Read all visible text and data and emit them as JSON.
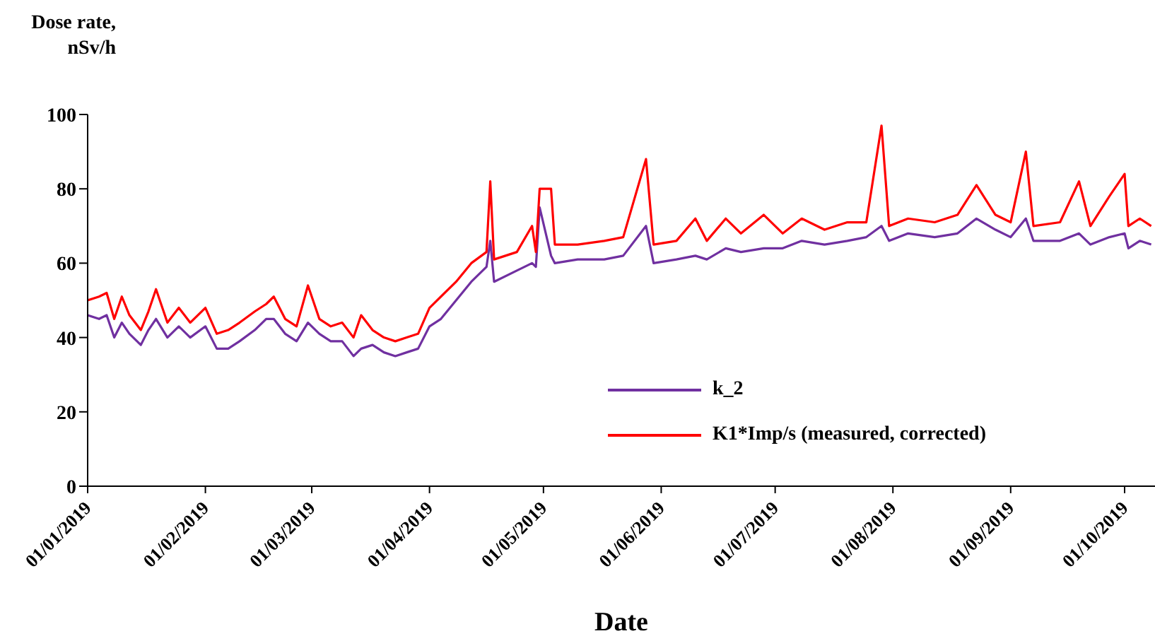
{
  "chart_data": {
    "type": "line",
    "ylabel": "Dose rate, nSv/h",
    "xlabel": "Date",
    "x": [
      "2019-01-01",
      "2019-01-04",
      "2019-01-06",
      "2019-01-08",
      "2019-01-10",
      "2019-01-12",
      "2019-01-15",
      "2019-01-17",
      "2019-01-19",
      "2019-01-22",
      "2019-01-25",
      "2019-01-28",
      "2019-02-01",
      "2019-02-04",
      "2019-02-07",
      "2019-02-10",
      "2019-02-14",
      "2019-02-17",
      "2019-02-19",
      "2019-02-22",
      "2019-02-25",
      "2019-02-28",
      "2019-03-03",
      "2019-03-06",
      "2019-03-09",
      "2019-03-12",
      "2019-03-14",
      "2019-03-17",
      "2019-03-20",
      "2019-03-23",
      "2019-03-26",
      "2019-03-29",
      "2019-04-01",
      "2019-04-04",
      "2019-04-08",
      "2019-04-12",
      "2019-04-16",
      "2019-04-17",
      "2019-04-18",
      "2019-04-24",
      "2019-04-28",
      "2019-04-29",
      "2019-04-30",
      "2019-05-03",
      "2019-05-04",
      "2019-05-10",
      "2019-05-17",
      "2019-05-22",
      "2019-05-28",
      "2019-05-30",
      "2019-06-05",
      "2019-06-10",
      "2019-06-13",
      "2019-06-18",
      "2019-06-22",
      "2019-06-28",
      "2019-07-03",
      "2019-07-08",
      "2019-07-14",
      "2019-07-20",
      "2019-07-25",
      "2019-07-29",
      "2019-07-31",
      "2019-08-05",
      "2019-08-12",
      "2019-08-18",
      "2019-08-23",
      "2019-08-28",
      "2019-09-01",
      "2019-09-05",
      "2019-09-07",
      "2019-09-14",
      "2019-09-19",
      "2019-09-22",
      "2019-09-27",
      "2019-10-01",
      "2019-10-02",
      "2019-10-05",
      "2019-10-08"
    ],
    "series": [
      {
        "name": "k_2",
        "color": "#7030a0",
        "values": [
          46,
          45,
          46,
          40,
          44,
          41,
          38,
          42,
          45,
          40,
          43,
          40,
          43,
          37,
          37,
          39,
          42,
          45,
          45,
          41,
          39,
          44,
          41,
          39,
          39,
          35,
          37,
          38,
          36,
          35,
          36,
          37,
          43,
          45,
          50,
          55,
          59,
          66,
          55,
          58,
          60,
          59,
          75,
          62,
          60,
          61,
          61,
          62,
          70,
          60,
          61,
          62,
          61,
          64,
          63,
          64,
          64,
          66,
          65,
          66,
          67,
          70,
          66,
          68,
          67,
          68,
          72,
          69,
          67,
          72,
          66,
          66,
          68,
          65,
          67,
          68,
          64,
          66,
          65
        ]
      },
      {
        "name": "K1*Imp/s (measured, corrected)",
        "color": "#ff0000",
        "values": [
          50,
          51,
          52,
          45,
          51,
          46,
          42,
          47,
          53,
          44,
          48,
          44,
          48,
          41,
          42,
          44,
          47,
          49,
          51,
          45,
          43,
          54,
          45,
          43,
          44,
          40,
          46,
          42,
          40,
          39,
          40,
          41,
          48,
          51,
          55,
          60,
          63,
          82,
          61,
          63,
          70,
          63,
          80,
          80,
          65,
          65,
          66,
          67,
          88,
          65,
          66,
          72,
          66,
          72,
          68,
          73,
          68,
          72,
          69,
          71,
          71,
          97,
          70,
          72,
          71,
          73,
          81,
          73,
          71,
          90,
          70,
          71,
          82,
          70,
          78,
          84,
          70,
          72,
          70
        ]
      }
    ],
    "xlim": [
      "2019-01-01",
      "2019-10-09"
    ],
    "xticks": [
      {
        "value": "2019-01-01",
        "label": "01/01/2019"
      },
      {
        "value": "2019-02-01",
        "label": "01/02/2019"
      },
      {
        "value": "2019-03-01",
        "label": "01/03/2019"
      },
      {
        "value": "2019-04-01",
        "label": "01/04/2019"
      },
      {
        "value": "2019-05-01",
        "label": "01/05/2019"
      },
      {
        "value": "2019-06-01",
        "label": "01/06/2019"
      },
      {
        "value": "2019-07-01",
        "label": "01/07/2019"
      },
      {
        "value": "2019-08-01",
        "label": "01/08/2019"
      },
      {
        "value": "2019-09-01",
        "label": "01/09/2019"
      },
      {
        "value": "2019-10-01",
        "label": "01/10/2019"
      }
    ],
    "ylim": [
      0,
      100
    ],
    "yticks": [
      0,
      20,
      40,
      60,
      80,
      100
    ],
    "grid": false,
    "legend": "bottom right",
    "marker": "none",
    "line_style": "solid"
  }
}
